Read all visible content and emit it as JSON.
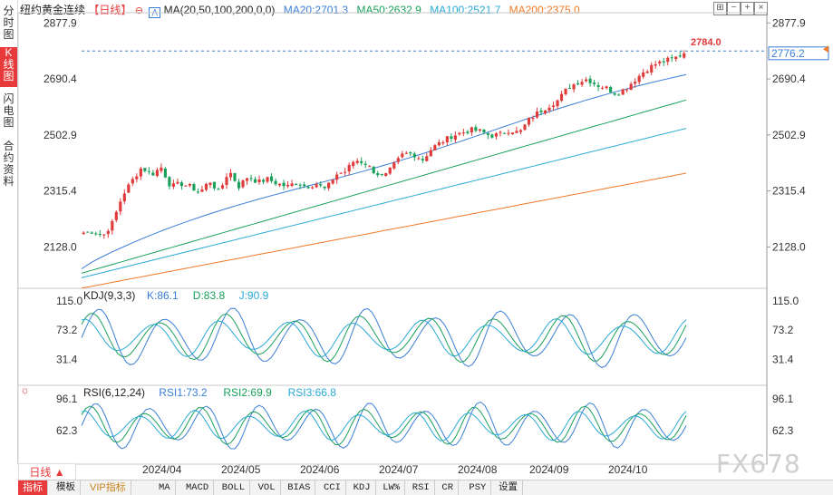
{
  "sidebar": {
    "tabs": [
      {
        "label": "分时图",
        "active": false
      },
      {
        "label": "K线图",
        "active": true
      },
      {
        "label": "闪电图",
        "active": false
      },
      {
        "label": "合约资料",
        "active": false
      }
    ]
  },
  "header": {
    "instrument": "纽约黄金连续",
    "period_tag": "【日线】",
    "ma_label": "MA(20,50,100,200,0,0)",
    "ma20": "MA20:2701.3",
    "ma50": "MA50:2632.9",
    "ma100": "MA100:2521.7",
    "ma200": "MA200:2375.0"
  },
  "controls": [
    {
      "icon": "expand-icon",
      "glyph": "⊞"
    },
    {
      "icon": "zoom-out-icon",
      "glyph": "−"
    },
    {
      "icon": "zoom-in-icon",
      "glyph": "+"
    },
    {
      "icon": "close-icon",
      "glyph": "×"
    }
  ],
  "colors": {
    "up": "#e03a3a",
    "down": "#1aa05a",
    "ma20": "#3a7fd5",
    "ma50": "#1aa05a",
    "ma100": "#2aa9d6",
    "ma200": "#f07b2a",
    "kdj_k": "#3a7fd5",
    "kdj_d": "#1aa05a",
    "kdj_j": "#2aa9d6",
    "axis_text": "#333333"
  },
  "chart_data": [
    {
      "type": "candlestick",
      "title": "纽约黄金连续",
      "y_ticks": [
        "2877.9",
        "2690.4",
        "2502.9",
        "2315.4",
        "2128.0"
      ],
      "ylim": [
        2020,
        2900
      ],
      "x_ticks": [
        "2024/04",
        "2024/05",
        "2024/06",
        "2024/07",
        "2024/08",
        "2024/09",
        "2024/10"
      ],
      "annotations": {
        "high_label": "2784.0",
        "last_price": "2776.2"
      },
      "ma_current": {
        "MA20": 2701.3,
        "MA50": 2632.9,
        "MA100": 2521.7,
        "MA200": 2375.0
      },
      "close_anchors": [
        2176,
        2180,
        2165,
        2210,
        2300,
        2350,
        2395,
        2370,
        2395,
        2330,
        2340,
        2330,
        2310,
        2350,
        2310,
        2385,
        2330,
        2365,
        2345,
        2355,
        2340,
        2330,
        2345,
        2330,
        2340,
        2320,
        2370,
        2380,
        2420,
        2410,
        2380,
        2360,
        2400,
        2440,
        2440,
        2420,
        2460,
        2480,
        2500,
        2510,
        2520,
        2515,
        2500,
        2505,
        2520,
        2510,
        2555,
        2580,
        2600,
        2620,
        2660,
        2680,
        2690,
        2670,
        2660,
        2640,
        2660,
        2690,
        2720,
        2740,
        2750,
        2760,
        2776
      ],
      "ma_series": {
        "MA20": {
          "start": 2055,
          "end": 2700
        },
        "MA50": {
          "start": 2040,
          "end": 2620
        },
        "MA100": {
          "start": 2025,
          "end": 2525
        },
        "MA200": {
          "start": 1990,
          "end": 2375
        }
      }
    },
    {
      "type": "line",
      "title": "KDJ(9,3,3)",
      "series": [
        {
          "name": "K",
          "value_label": "K:86.1"
        },
        {
          "name": "D",
          "value_label": "D:83.8"
        },
        {
          "name": "J",
          "value_label": "J:90.9"
        }
      ],
      "y_ticks": [
        "115.0",
        "73.2",
        "31.4"
      ],
      "ylim": [
        0,
        125
      ]
    },
    {
      "type": "line",
      "title": "RSI(6,12,24)",
      "series": [
        {
          "name": "RSI1",
          "value_label": "RSI1:73.2"
        },
        {
          "name": "RSI2",
          "value_label": "RSI2:69.9"
        },
        {
          "name": "RSI3",
          "value_label": "RSI3:66.8"
        }
      ],
      "y_ticks": [
        "96.1",
        "62.3"
      ],
      "ylim": [
        30,
        105
      ]
    }
  ],
  "footer": {
    "period_button": "日线 ▲",
    "tabs": [
      {
        "label": "指标",
        "style": "active"
      },
      {
        "label": "模板",
        "style": "normal"
      },
      {
        "label": "VIP指标",
        "style": "vip"
      },
      {
        "label": "MA",
        "style": "normal"
      },
      {
        "label": "MACD",
        "style": "normal"
      },
      {
        "label": "BOLL",
        "style": "normal"
      },
      {
        "label": "VOL",
        "style": "normal"
      },
      {
        "label": "BIAS",
        "style": "normal"
      },
      {
        "label": "CCI",
        "style": "normal"
      },
      {
        "label": "KDJ",
        "style": "normal"
      },
      {
        "label": "LW%",
        "style": "normal"
      },
      {
        "label": "RSI",
        "style": "normal"
      },
      {
        "label": "CR",
        "style": "normal"
      },
      {
        "label": "PSY",
        "style": "normal"
      },
      {
        "label": "设置",
        "style": "normal"
      }
    ],
    "watermark": "FX678"
  }
}
